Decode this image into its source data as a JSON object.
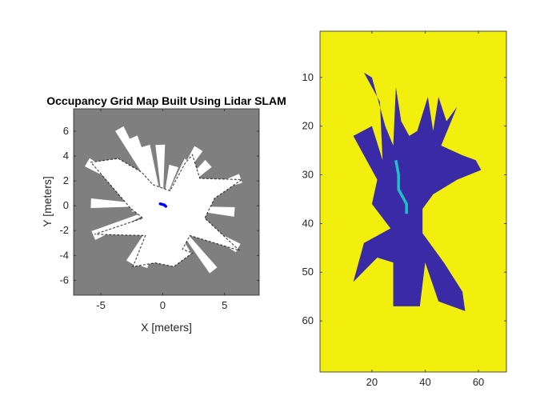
{
  "chart_data": [
    {
      "type": "heatmap",
      "title": "Occupancy Grid Map Built Using Lidar SLAM",
      "xlabel": "X [meters]",
      "ylabel": "Y [meters]",
      "xlim": [
        -7.2,
        7.8
      ],
      "ylim": [
        -7.2,
        7.8
      ],
      "xticks": [
        -5,
        0,
        5
      ],
      "xtick_labels": [
        "-5",
        "0",
        "5"
      ],
      "yticks": [
        6,
        4,
        2,
        0,
        -2,
        -4,
        -6
      ],
      "ytick_labels": [
        "6",
        "4",
        "2",
        "0",
        "-2",
        "-4",
        "-6"
      ],
      "grid": false,
      "colors": {
        "unknown": "#7f7f7f",
        "free": "#ffffff",
        "occupied": "#000000",
        "pose": "#0000ff"
      },
      "free_space_region": [
        [
          -3.6,
          3.8
        ],
        [
          -1.7,
          2.7
        ],
        [
          -0.8,
          1.7
        ],
        [
          0.6,
          1.2
        ],
        [
          1.8,
          3.4
        ],
        [
          2.4,
          4.1
        ],
        [
          3,
          2.2
        ],
        [
          6.4,
          2.1
        ],
        [
          4.2,
          0.6
        ],
        [
          3.4,
          -1
        ],
        [
          6.2,
          -3.6
        ],
        [
          2.2,
          -2.4
        ],
        [
          1.6,
          -3.5
        ],
        [
          2.4,
          -3.8
        ],
        [
          0.9,
          -4.9
        ],
        [
          -0.6,
          -4.6
        ],
        [
          -2.4,
          -4.9
        ],
        [
          -1.4,
          -2.4
        ],
        [
          -5.5,
          -2.3
        ],
        [
          -1.6,
          -1
        ],
        [
          -2.6,
          -0.2
        ],
        [
          -5.8,
          3.5
        ]
      ],
      "rays_to": [
        [
          -3.5,
          6.2
        ],
        [
          -2.4,
          5.5
        ],
        [
          -1.4,
          4.8
        ],
        [
          -0.2,
          4.9
        ],
        [
          0.9,
          3.2
        ],
        [
          2.1,
          3.6
        ],
        [
          2.9,
          4.6
        ],
        [
          3.7,
          3.4
        ],
        [
          6.3,
          2.2
        ],
        [
          5.8,
          -0.5
        ],
        [
          6.1,
          -3.4
        ],
        [
          4.1,
          -5.2
        ],
        [
          1.9,
          -3.9
        ],
        [
          0.2,
          -4.7
        ],
        [
          -1.6,
          -4.9
        ],
        [
          -2.6,
          -4.6
        ],
        [
          -5.6,
          -2.4
        ],
        [
          -5.8,
          0.2
        ],
        [
          -6.1,
          3.5
        ],
        [
          -2.5,
          -0.1
        ]
      ],
      "robot_path": [
        [
          -0.2,
          0.15
        ],
        [
          0,
          0.1
        ],
        [
          0.15,
          0.05
        ],
        [
          0.25,
          -0.05
        ]
      ]
    },
    {
      "type": "heatmap",
      "title": "",
      "xlabel": "",
      "ylabel": "",
      "xlim": [
        0.5,
        70.5
      ],
      "ylim": [
        0.5,
        70.5
      ],
      "y_direction": "reverse",
      "xticks": [
        20,
        40,
        60
      ],
      "xtick_labels": [
        "20",
        "40",
        "60"
      ],
      "yticks": [
        10,
        20,
        30,
        40,
        50,
        60
      ],
      "ytick_labels": [
        "10",
        "20",
        "30",
        "40",
        "50",
        "60"
      ],
      "grid": false,
      "colors": {
        "background": "#f2ef0f",
        "free": "#3b2aa6",
        "path": "#1fc2c4"
      },
      "free_cells_region": [
        [
          17,
          9
        ],
        [
          20,
          10
        ],
        [
          25,
          20
        ],
        [
          28,
          24
        ],
        [
          29,
          12
        ],
        [
          31,
          19
        ],
        [
          34,
          22
        ],
        [
          37,
          21
        ],
        [
          41,
          14
        ],
        [
          43,
          21
        ],
        [
          45,
          14
        ],
        [
          48,
          19
        ],
        [
          52,
          16
        ],
        [
          46,
          24
        ],
        [
          54,
          26
        ],
        [
          59,
          27
        ],
        [
          61,
          29
        ],
        [
          52,
          31
        ],
        [
          43,
          34
        ],
        [
          39,
          37
        ],
        [
          39,
          42
        ],
        [
          47,
          48
        ],
        [
          54,
          54
        ],
        [
          55,
          58
        ],
        [
          45,
          56
        ],
        [
          40,
          48
        ],
        [
          38,
          57
        ],
        [
          28,
          57
        ],
        [
          28,
          48
        ],
        [
          22,
          47
        ],
        [
          13,
          52
        ],
        [
          17,
          44
        ],
        [
          27,
          41
        ],
        [
          20,
          36
        ],
        [
          22,
          31
        ],
        [
          13,
          22
        ],
        [
          20,
          20
        ],
        [
          24,
          27
        ],
        [
          23,
          15
        ]
      ],
      "path_cells": [
        [
          29,
          27
        ],
        [
          30,
          30
        ],
        [
          30,
          33
        ],
        [
          31,
          34
        ],
        [
          32,
          35
        ],
        [
          33,
          36
        ],
        [
          33,
          38
        ]
      ]
    }
  ]
}
